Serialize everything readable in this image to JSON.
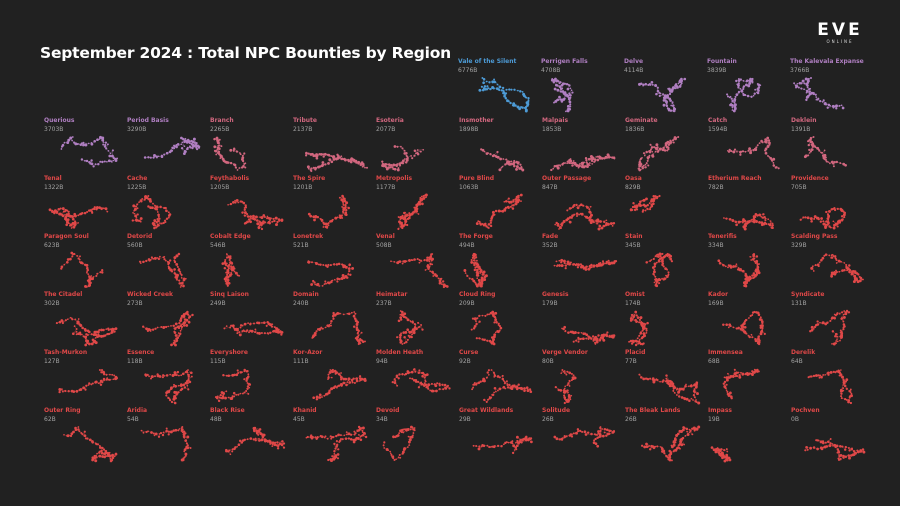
{
  "title": "September 2024 : Total NPC Bounties by Region",
  "logo": {
    "main": "EVE",
    "sub": "ONLINE"
  },
  "colors": {
    "background": "#212121",
    "top": "#4d9bd6",
    "high": "#b07fc2",
    "mid": "#d2677f",
    "low": "#e04848"
  },
  "chart_data": {
    "type": "small-multiples",
    "title": "September 2024 : Total NPC Bounties by Region",
    "unit": "B",
    "regions": [
      {
        "name": "Vale of the Silent",
        "label": "6776B",
        "value": 6776
      },
      {
        "name": "Perrigen Falls",
        "label": "4708B",
        "value": 4708
      },
      {
        "name": "Delve",
        "label": "4114B",
        "value": 4114
      },
      {
        "name": "Fountain",
        "label": "3839B",
        "value": 3839
      },
      {
        "name": "The Kalevala Expanse",
        "label": "3766B",
        "value": 3766
      },
      {
        "name": "Querious",
        "label": "3703B",
        "value": 3703
      },
      {
        "name": "Period Basis",
        "label": "3290B",
        "value": 3290
      },
      {
        "name": "Branch",
        "label": "2265B",
        "value": 2265
      },
      {
        "name": "Tribute",
        "label": "2137B",
        "value": 2137
      },
      {
        "name": "Esoteria",
        "label": "2077B",
        "value": 2077
      },
      {
        "name": "Insmother",
        "label": "1898B",
        "value": 1898
      },
      {
        "name": "Malpais",
        "label": "1853B",
        "value": 1853
      },
      {
        "name": "Geminate",
        "label": "1836B",
        "value": 1836
      },
      {
        "name": "Catch",
        "label": "1594B",
        "value": 1594
      },
      {
        "name": "Deklein",
        "label": "1391B",
        "value": 1391
      },
      {
        "name": "Tenal",
        "label": "1322B",
        "value": 1322
      },
      {
        "name": "Cache",
        "label": "1225B",
        "value": 1225
      },
      {
        "name": "Feythabolis",
        "label": "1205B",
        "value": 1205
      },
      {
        "name": "The Spire",
        "label": "1201B",
        "value": 1201
      },
      {
        "name": "Metropolis",
        "label": "1177B",
        "value": 1177
      },
      {
        "name": "Pure Blind",
        "label": "1063B",
        "value": 1063
      },
      {
        "name": "Outer Passage",
        "label": "847B",
        "value": 847
      },
      {
        "name": "Oasa",
        "label": "829B",
        "value": 829
      },
      {
        "name": "Etherium Reach",
        "label": "782B",
        "value": 782
      },
      {
        "name": "Providence",
        "label": "705B",
        "value": 705
      },
      {
        "name": "Paragon Soul",
        "label": "623B",
        "value": 623
      },
      {
        "name": "Detorid",
        "label": "560B",
        "value": 560
      },
      {
        "name": "Cobalt Edge",
        "label": "546B",
        "value": 546
      },
      {
        "name": "Lonetrek",
        "label": "521B",
        "value": 521
      },
      {
        "name": "Venal",
        "label": "508B",
        "value": 508
      },
      {
        "name": "The Forge",
        "label": "494B",
        "value": 494
      },
      {
        "name": "Fade",
        "label": "352B",
        "value": 352
      },
      {
        "name": "Stain",
        "label": "345B",
        "value": 345
      },
      {
        "name": "Tenerifis",
        "label": "334B",
        "value": 334
      },
      {
        "name": "Scalding Pass",
        "label": "329B",
        "value": 329
      },
      {
        "name": "The Citadel",
        "label": "302B",
        "value": 302
      },
      {
        "name": "Wicked Creek",
        "label": "273B",
        "value": 273
      },
      {
        "name": "Sinq Laison",
        "label": "249B",
        "value": 249
      },
      {
        "name": "Domain",
        "label": "240B",
        "value": 240
      },
      {
        "name": "Heimatar",
        "label": "237B",
        "value": 237
      },
      {
        "name": "Cloud Ring",
        "label": "209B",
        "value": 209
      },
      {
        "name": "Genesis",
        "label": "179B",
        "value": 179
      },
      {
        "name": "Omist",
        "label": "174B",
        "value": 174
      },
      {
        "name": "Kador",
        "label": "169B",
        "value": 169
      },
      {
        "name": "Syndicate",
        "label": "131B",
        "value": 131
      },
      {
        "name": "Tash-Murkon",
        "label": "127B",
        "value": 127
      },
      {
        "name": "Essence",
        "label": "118B",
        "value": 118
      },
      {
        "name": "Everyshore",
        "label": "115B",
        "value": 115
      },
      {
        "name": "Kor-Azor",
        "label": "111B",
        "value": 111
      },
      {
        "name": "Molden Heath",
        "label": "94B",
        "value": 94
      },
      {
        "name": "Curse",
        "label": "92B",
        "value": 92
      },
      {
        "name": "Verge Vendor",
        "label": "80B",
        "value": 80
      },
      {
        "name": "Placid",
        "label": "77B",
        "value": 77
      },
      {
        "name": "Immensea",
        "label": "68B",
        "value": 68
      },
      {
        "name": "Derelik",
        "label": "64B",
        "value": 64
      },
      {
        "name": "Outer Ring",
        "label": "62B",
        "value": 62
      },
      {
        "name": "Aridia",
        "label": "54B",
        "value": 54
      },
      {
        "name": "Black Rise",
        "label": "48B",
        "value": 48
      },
      {
        "name": "Khanid",
        "label": "45B",
        "value": 45
      },
      {
        "name": "Devoid",
        "label": "34B",
        "value": 34
      },
      {
        "name": "Great Wildlands",
        "label": "29B",
        "value": 29
      },
      {
        "name": "Solitude",
        "label": "26B",
        "value": 26
      },
      {
        "name": "The Bleak Lands",
        "label": "26B",
        "value": 26
      },
      {
        "name": "Impass",
        "label": "19B",
        "value": 19
      },
      {
        "name": "Pochven",
        "label": "0B",
        "value": 0
      }
    ]
  }
}
